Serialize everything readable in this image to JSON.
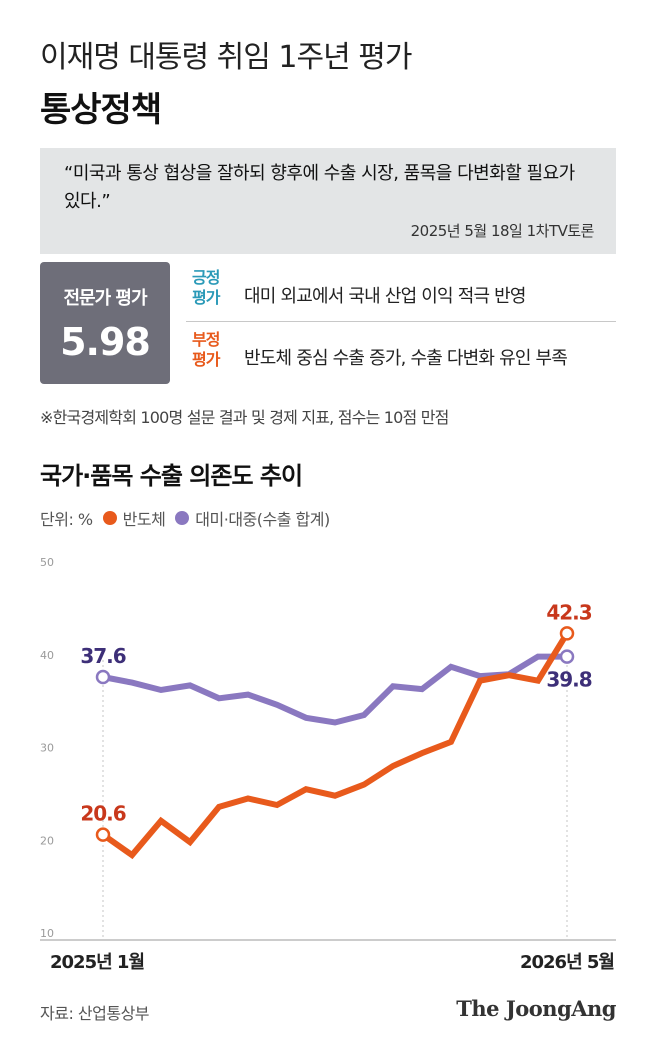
{
  "header": {
    "subtitle": "이재명 대통령 취임 1주년 평가",
    "title": "통상정책"
  },
  "quote": {
    "text": "“미국과 통상 협상을 잘하되 향후에 수출 시장, 품목을 다변화할 필요가 있다.”",
    "source": "2025년 5월 18일 1차TV토론"
  },
  "expert": {
    "label": "전문가 평가",
    "score": "5.98"
  },
  "evaluations": {
    "positive": {
      "tag": "긍정 평가",
      "text": "대미 외교에서 국내 산업 이익 적극 반영",
      "color": "#2b9ab8"
    },
    "negative": {
      "tag": "부정 평가",
      "text": "반도체 중심 수출 증가, 수출 다변화 유인 부족",
      "color": "#e85a1c"
    }
  },
  "footnote": "※한국경제학회 100명 설문 결과 및 경제 지표, 점수는 10점 만점",
  "chart_section": {
    "title": "국가·품목 수출 의존도 추이",
    "unit_label": "단위: %"
  },
  "chart_data": {
    "type": "line",
    "title": "국가·품목 수출 의존도 추이",
    "unit": "%",
    "ylim": [
      10,
      50
    ],
    "yticks": [
      "10",
      "20",
      "30",
      "40",
      "50"
    ],
    "x_start_label": "2025년 1월",
    "x_end_label": "2026년 5월",
    "grid": false,
    "series": [
      {
        "name": "반도체",
        "color": "#e85a1c",
        "label_color": "#c8381c",
        "values": [
          20.6,
          18.4,
          22.1,
          19.8,
          23.6,
          24.5,
          23.8,
          25.5,
          24.8,
          26.0,
          28.0,
          29.4,
          30.6,
          37.2,
          37.8,
          37.2,
          42.3
        ],
        "first_label": "20.6",
        "last_label": "42.3"
      },
      {
        "name": "대미·대중(수출 합계)",
        "color": "#8a78c0",
        "label_color": "#3d2f78",
        "values": [
          37.6,
          37.0,
          36.2,
          36.7,
          35.3,
          35.7,
          34.6,
          33.2,
          32.7,
          33.5,
          36.6,
          36.3,
          38.7,
          37.7,
          37.9,
          39.8,
          39.8
        ],
        "first_label": "37.6",
        "last_label": "39.8"
      }
    ]
  },
  "footer": {
    "source": "자료: 산업통상부",
    "logo": "The JoongAng"
  }
}
